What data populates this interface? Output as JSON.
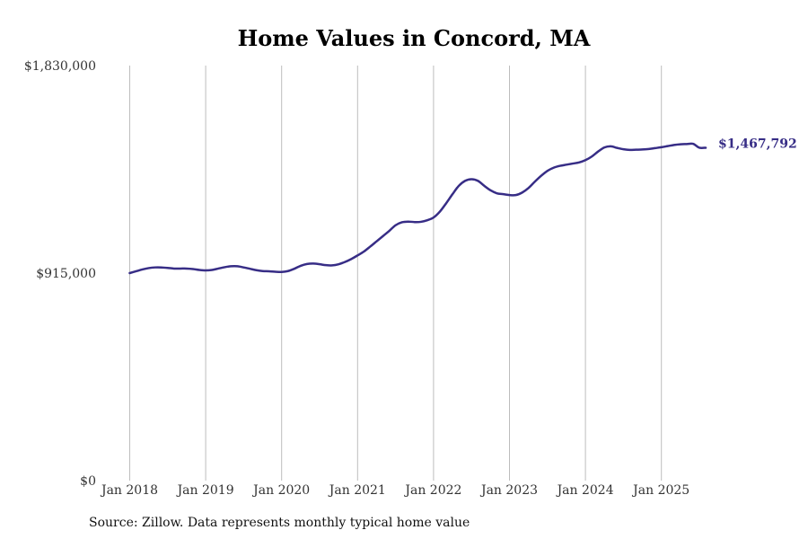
{
  "chart_data": {
    "type": "line",
    "title": "Home Values in Concord, MA",
    "xlabel": "",
    "ylabel": "",
    "ylim": [
      0,
      1830000
    ],
    "y_ticks": [
      "$0",
      "$915,000",
      "$1,830,000"
    ],
    "y_tick_values": [
      0,
      915000,
      1830000
    ],
    "x_ticks": [
      "Jan 2018",
      "Jan 2019",
      "Jan 2020",
      "Jan 2021",
      "Jan 2022",
      "Jan 2023",
      "Jan 2024",
      "Jan 2025"
    ],
    "x_tick_values": [
      "2018-01",
      "2019-01",
      "2020-01",
      "2021-01",
      "2022-01",
      "2023-01",
      "2024-01",
      "2025-01"
    ],
    "grid": "vertical",
    "line_color": "#372d86",
    "end_label": "$1,467,792",
    "series": [
      {
        "x": [
          "2018-01",
          "2018-02",
          "2018-03",
          "2018-04",
          "2018-05",
          "2018-06",
          "2018-07",
          "2018-08",
          "2018-09",
          "2018-10",
          "2018-11",
          "2018-12",
          "2019-01",
          "2019-02",
          "2019-03",
          "2019-04",
          "2019-05",
          "2019-06",
          "2019-07",
          "2019-08",
          "2019-09",
          "2019-10",
          "2019-11",
          "2019-12",
          "2020-01",
          "2020-02",
          "2020-03",
          "2020-04",
          "2020-05",
          "2020-06",
          "2020-07",
          "2020-08",
          "2020-09",
          "2020-10",
          "2020-11",
          "2020-12",
          "2021-01",
          "2021-02",
          "2021-03",
          "2021-04",
          "2021-05",
          "2021-06",
          "2021-07",
          "2021-08",
          "2021-09",
          "2021-10",
          "2021-11",
          "2021-12",
          "2022-01",
          "2022-02",
          "2022-03",
          "2022-04",
          "2022-05",
          "2022-06",
          "2022-07",
          "2022-08",
          "2022-09",
          "2022-10",
          "2022-11",
          "2022-12",
          "2023-01",
          "2023-02",
          "2023-03",
          "2023-04",
          "2023-05",
          "2023-06",
          "2023-07",
          "2023-08",
          "2023-09",
          "2023-10",
          "2023-11",
          "2023-12",
          "2024-01",
          "2024-02",
          "2024-03",
          "2024-04",
          "2024-05",
          "2024-06",
          "2024-07",
          "2024-08",
          "2024-09",
          "2024-10",
          "2024-11",
          "2024-12",
          "2025-01",
          "2025-02",
          "2025-03",
          "2025-04",
          "2025-05",
          "2025-06",
          "2025-07",
          "2025-08"
        ],
        "values": [
          915000,
          923000,
          931000,
          937000,
          940000,
          940000,
          938000,
          935000,
          935000,
          935000,
          933000,
          929000,
          927000,
          929000,
          935000,
          941000,
          945000,
          945000,
          940000,
          934000,
          928000,
          924000,
          923000,
          921000,
          920000,
          924000,
          934000,
          947000,
          955000,
          957000,
          954000,
          950000,
          949000,
          954000,
          964000,
          977000,
          993000,
          1010000,
          1032000,
          1055000,
          1078000,
          1101000,
          1126000,
          1139000,
          1142000,
          1140000,
          1141000,
          1148000,
          1160000,
          1186000,
          1223000,
          1263000,
          1300000,
          1322000,
          1329000,
          1322000,
          1300000,
          1280000,
          1267000,
          1263000,
          1259000,
          1259000,
          1270000,
          1290000,
          1318000,
          1344000,
          1366000,
          1380000,
          1388000,
          1393000,
          1398000,
          1403000,
          1413000,
          1429000,
          1451000,
          1469000,
          1474000,
          1467000,
          1461000,
          1458000,
          1459000,
          1460000,
          1462000,
          1466000,
          1470000,
          1475000,
          1480000,
          1483000,
          1484000,
          1485000,
          1467792,
          1467792
        ]
      }
    ]
  },
  "source_note": "Source: Zillow. Data represents monthly typical home value"
}
